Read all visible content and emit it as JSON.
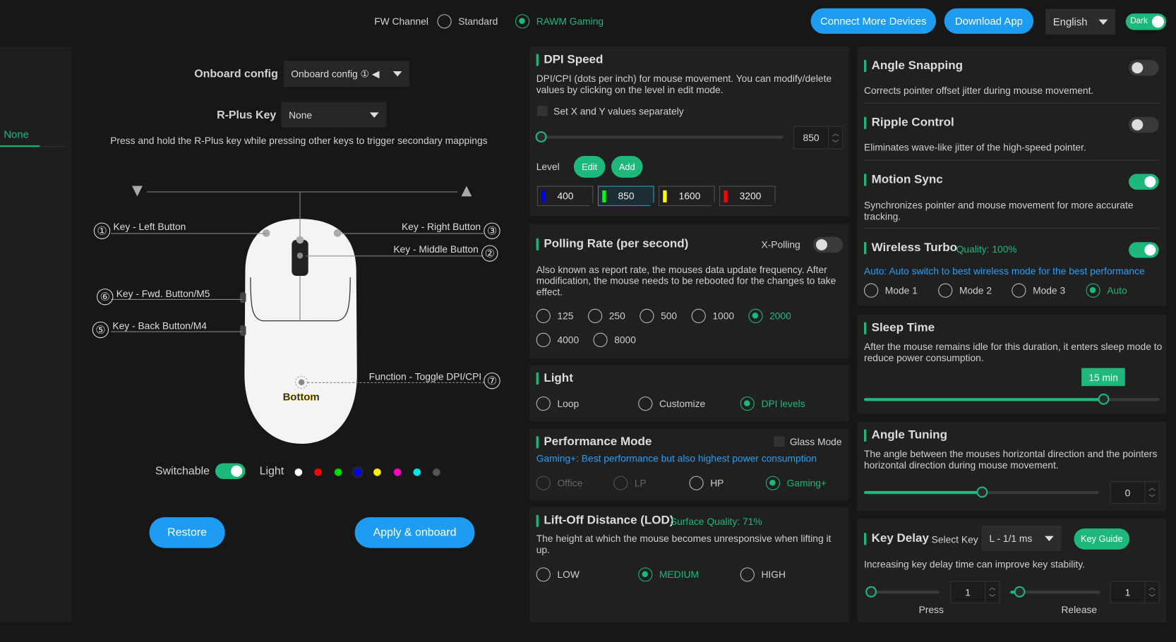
{
  "topbar": {
    "fw_label": "FW Channel",
    "fw_options": [
      "Standard",
      "RAWM Gaming"
    ],
    "fw_selected": "RAWM Gaming",
    "connect": "Connect More Devices",
    "download": "Download App",
    "language": "English",
    "theme": "Dark"
  },
  "sidebar": {
    "tab": "None"
  },
  "left": {
    "onboard_label": "Onboard config",
    "onboard_value": "Onboard config ① ◀",
    "rplus_label": "R-Plus Key",
    "rplus_value": "None",
    "rplus_hint": "Press and hold the R-Plus key while pressing other keys to trigger secondary mappings",
    "keys": [
      {
        "n": "①",
        "label": "Key - Left Button"
      },
      {
        "n": "③",
        "label": "Key - Right Button"
      },
      {
        "n": "②",
        "label": "Key - Middle Button"
      },
      {
        "n": "⑥",
        "label": "Key - Fwd. Button/M5"
      },
      {
        "n": "⑤",
        "label": "Key - Back Button/M4"
      },
      {
        "n": "⑦",
        "label": "Function - Toggle DPI/CPI"
      }
    ],
    "bottom_label": "Bottom",
    "switchable": "Switchable",
    "light": "Light",
    "light_colors": [
      "#ffffff",
      "#ff0000",
      "#00dd00",
      "#0000ff",
      "#ffee00",
      "#ff00cc",
      "#00e5e5",
      "#555555"
    ],
    "restore": "Restore",
    "apply": "Apply & onboard"
  },
  "dpi": {
    "title": "DPI Speed",
    "desc": "DPI/CPI (dots per inch) for mouse movement. You can modify/delete values by clicking on the level in edit mode.",
    "xy": "Set X and Y values separately",
    "value": "850",
    "level": "Level",
    "edit": "Edit",
    "add": "Add",
    "levels": [
      {
        "v": "400",
        "c": "#0000ff"
      },
      {
        "v": "850",
        "c": "#00ff00"
      },
      {
        "v": "1600",
        "c": "#ffff00"
      },
      {
        "v": "3200",
        "c": "#ff0000"
      }
    ],
    "selected_level": "850"
  },
  "polling": {
    "title": "Polling Rate (per second)",
    "xpolling": "X-Polling",
    "desc": "Also known as report rate, the mouses data update frequency. After modification, the mouse needs to be rebooted for the changes to take effect.",
    "options": [
      "125",
      "250",
      "500",
      "1000",
      "2000",
      "4000",
      "8000"
    ],
    "selected": "2000"
  },
  "light": {
    "title": "Light",
    "options": [
      "Loop",
      "Customize",
      "DPI levels"
    ],
    "selected": "DPI levels"
  },
  "perf": {
    "title": "Performance Mode",
    "glass": "Glass Mode",
    "desc": "Gaming+: Best performance but also highest power consumption",
    "options": [
      "Office",
      "LP",
      "HP",
      "Gaming+"
    ],
    "selected": "Gaming+"
  },
  "lod": {
    "title": "Lift-Off Distance (LOD)",
    "quality": "Surface Quality: 71%",
    "desc": "The height at which the mouse becomes unresponsive when lifting it up.",
    "options": [
      "LOW",
      "MEDIUM",
      "HIGH"
    ],
    "selected": "MEDIUM"
  },
  "angle_snapping": {
    "title": "Angle Snapping",
    "desc": "Corrects pointer offset jitter during mouse movement.",
    "on": false
  },
  "ripple": {
    "title": "Ripple Control",
    "desc": "Eliminates wave-like jitter of the high-speed pointer.",
    "on": false
  },
  "motion": {
    "title": "Motion Sync",
    "desc": "Synchronizes pointer and mouse movement for more accurate tracking.",
    "on": true
  },
  "wireless": {
    "title": "Wireless Turbo",
    "quality": "Quality: 100%",
    "on": true,
    "desc": "Auto: Auto switch to best wireless mode for the best performance",
    "options": [
      "Mode 1",
      "Mode 2",
      "Mode 3",
      "Auto"
    ],
    "selected": "Auto"
  },
  "sleep": {
    "title": "Sleep Time",
    "desc": "After the mouse remains idle for this duration, it enters sleep mode to reduce power consumption.",
    "value": "15 min",
    "fraction": 0.81
  },
  "angle_tuning": {
    "title": "Angle Tuning",
    "desc": "The angle between the mouses horizontal direction and the pointers horizontal direction during mouse movement.",
    "value": "0",
    "fraction": 0.5
  },
  "key_delay": {
    "title": "Key Delay",
    "select_label": "Select Key",
    "select_value": "L - 1/1 ms",
    "guide": "Key Guide",
    "desc": "Increasing key delay time can improve key stability.",
    "press": "Press",
    "press_value": "1",
    "release": "Release",
    "release_value": "1"
  }
}
